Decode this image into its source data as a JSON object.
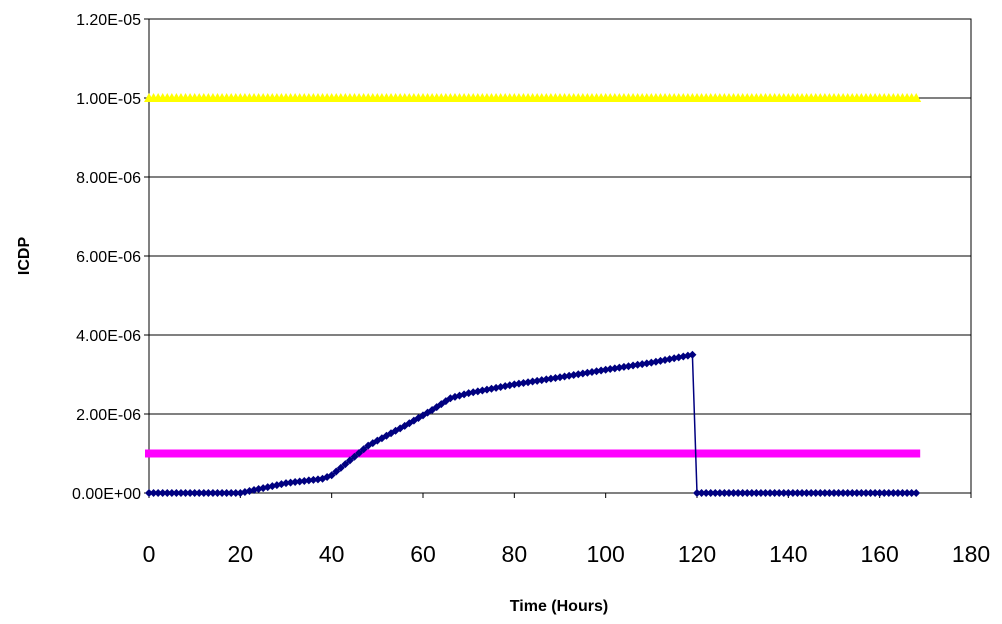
{
  "chart_data": {
    "type": "line",
    "title": "",
    "xlabel": "Time (Hours)",
    "ylabel": "ICDP",
    "xlim": [
      0,
      180
    ],
    "ylim": [
      0,
      1.2e-05
    ],
    "x_ticks": [
      "0",
      "20",
      "40",
      "60",
      "80",
      "100",
      "120",
      "140",
      "160",
      "180"
    ],
    "y_ticks": [
      "0.00E+00",
      "2.00E-06",
      "4.00E-06",
      "6.00E-06",
      "8.00E-06",
      "1.00E-05",
      "1.20E-05"
    ],
    "grid": "horizontal major gridlines",
    "legend": "none",
    "series": [
      {
        "color": "#ffff00",
        "marker": "triangle",
        "line": "horizontal constant",
        "x": [
          0,
          168
        ],
        "y": [
          1e-05,
          1e-05
        ]
      },
      {
        "color": "#ff00ff",
        "marker": "square",
        "line": "horizontal constant",
        "x": [
          0,
          168
        ],
        "y": [
          1e-06,
          1e-06
        ]
      },
      {
        "color": "#000080",
        "marker": "diamond",
        "line": "solid",
        "x": [
          0,
          20,
          30,
          38,
          40,
          48,
          56,
          62,
          66,
          70,
          80,
          90,
          100,
          110,
          119,
          120,
          168
        ],
        "y": [
          0,
          0,
          2.5e-07,
          3.6e-07,
          4.5e-07,
          1.2e-06,
          1.7e-06,
          2.1e-06,
          2.4e-06,
          2.53e-06,
          2.75e-06,
          2.93e-06,
          3.12e-06,
          3.3e-06,
          3.5e-06,
          0,
          0
        ]
      }
    ]
  }
}
